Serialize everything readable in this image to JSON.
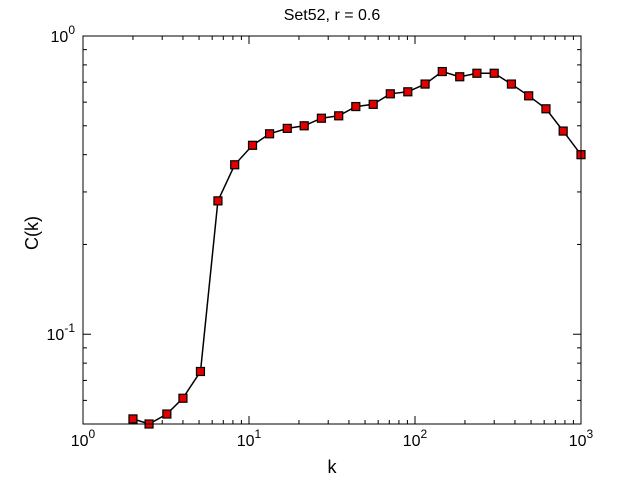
{
  "chart_data": {
    "type": "line",
    "title": "Set52, r = 0.6",
    "xlabel": "k",
    "ylabel": "C(k)",
    "xscale": "log",
    "yscale": "log",
    "xlim": [
      1,
      1000
    ],
    "ylim": [
      0.05,
      1
    ],
    "grid": false,
    "legend": "none",
    "x_ticks": [
      {
        "value": 1,
        "base": "10",
        "exp": "0"
      },
      {
        "value": 10,
        "base": "10",
        "exp": "1"
      },
      {
        "value": 100,
        "base": "10",
        "exp": "2"
      },
      {
        "value": 1000,
        "base": "10",
        "exp": "3"
      }
    ],
    "y_ticks": [
      {
        "value": 0.1,
        "base": "10",
        "exp": "-1"
      },
      {
        "value": 1,
        "base": "10",
        "exp": "0"
      }
    ],
    "series": [
      {
        "line_color": "#000000",
        "marker": "square",
        "marker_fill": "#e00000",
        "marker_edge": "#000000",
        "x": [
          2,
          2.5,
          3.2,
          4,
          5.1,
          6.5,
          8.2,
          10.5,
          13.3,
          17,
          21.5,
          27.3,
          34.7,
          44,
          56,
          71,
          90.5,
          115,
          146,
          186,
          236,
          300,
          381,
          484,
          615,
          781,
          1000
        ],
        "y": [
          0.052,
          0.05,
          0.054,
          0.061,
          0.075,
          0.28,
          0.37,
          0.43,
          0.47,
          0.49,
          0.5,
          0.53,
          0.54,
          0.58,
          0.59,
          0.64,
          0.65,
          0.69,
          0.76,
          0.73,
          0.75,
          0.75,
          0.69,
          0.63,
          0.57,
          0.48,
          0.4
        ]
      }
    ]
  }
}
